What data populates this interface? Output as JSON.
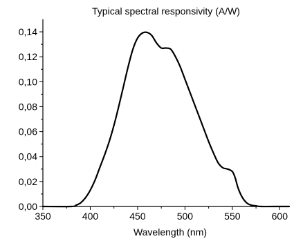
{
  "chart_data": {
    "type": "line",
    "title": "Typical spectral responsivity (A/W)",
    "xlabel": "Wavelength (nm)",
    "ylabel": "",
    "xlim": [
      350,
      610
    ],
    "ylim": [
      0,
      0.15
    ],
    "x_ticks": [
      350,
      400,
      450,
      500,
      550,
      600
    ],
    "x_tick_labels": [
      "350",
      "400",
      "450",
      "500",
      "550",
      "600"
    ],
    "y_ticks": [
      0,
      0.02,
      0.04,
      0.06,
      0.08,
      0.1,
      0.12,
      0.14
    ],
    "y_tick_labels": [
      "0,00",
      "0,02",
      "0,04",
      "0,06",
      "0,08",
      "0,10",
      "0,12",
      "0,14"
    ],
    "grid": false,
    "series": [
      {
        "x": [
          350,
          380,
          385,
          390,
          395,
          400,
          405,
          410,
          415,
          420,
          425,
          430,
          435,
          440,
          445,
          450,
          455,
          460,
          465,
          470,
          475,
          480,
          485,
          490,
          495,
          500,
          505,
          510,
          515,
          520,
          525,
          530,
          535,
          540,
          545,
          550,
          553,
          556,
          560,
          565,
          570,
          575,
          580,
          600,
          610
        ],
        "y": [
          0,
          0,
          0.001,
          0.003,
          0.007,
          0.013,
          0.021,
          0.031,
          0.041,
          0.052,
          0.065,
          0.08,
          0.096,
          0.112,
          0.126,
          0.135,
          0.139,
          0.1395,
          0.137,
          0.131,
          0.127,
          0.127,
          0.126,
          0.12,
          0.112,
          0.102,
          0.092,
          0.082,
          0.072,
          0.062,
          0.052,
          0.043,
          0.035,
          0.031,
          0.03,
          0.028,
          0.023,
          0.015,
          0.008,
          0.003,
          0.001,
          0.0005,
          0,
          0,
          0
        ]
      }
    ]
  }
}
